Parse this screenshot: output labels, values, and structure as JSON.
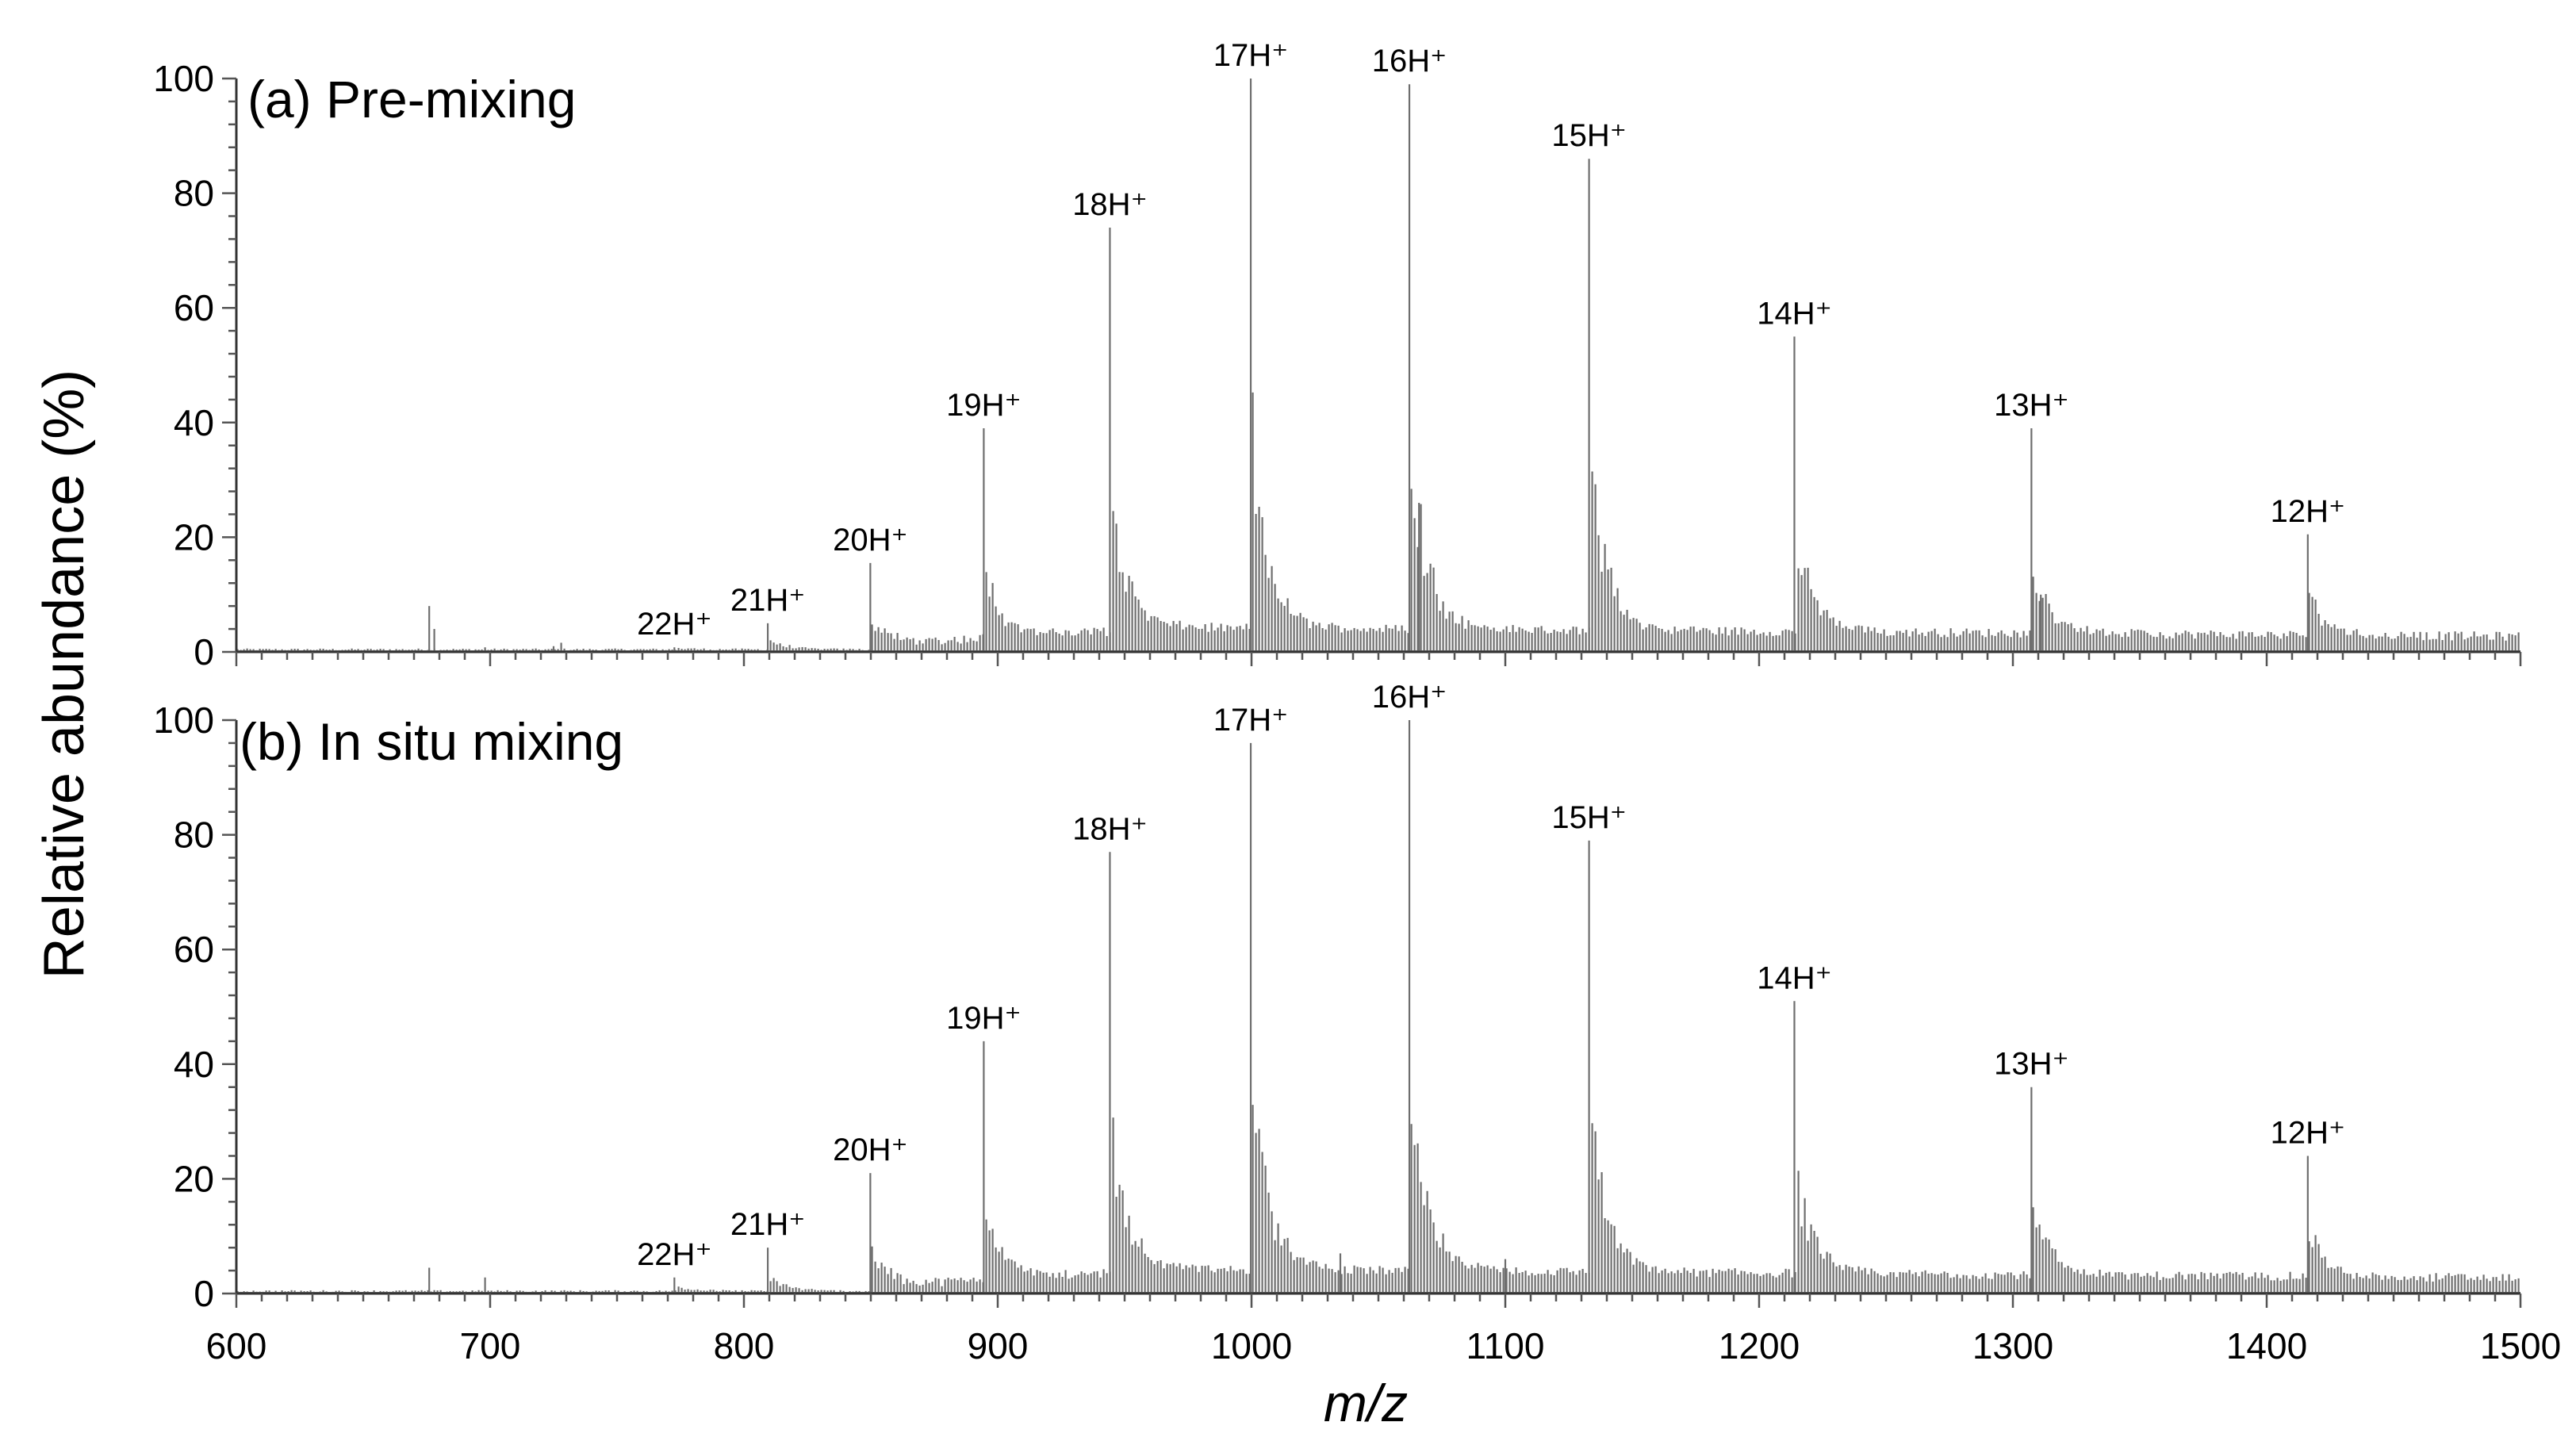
{
  "chart_data": {
    "type": "bar",
    "figure": {
      "xlabel": "m/z",
      "ylabel": "Relative abundance (%)",
      "xlim": [
        600,
        1500
      ],
      "xticks": [
        "600",
        "700",
        "800",
        "900",
        "1000",
        "1100",
        "1200",
        "1300",
        "1400",
        "1500"
      ]
    },
    "panels": [
      {
        "title": "(a) Pre-mixing",
        "ylim": [
          0,
          100
        ],
        "yticks": [
          "0",
          "20",
          "40",
          "60",
          "80",
          "100"
        ],
        "peaks": [
          {
            "label": "22H⁺",
            "mz": 772.6,
            "value": 0.8
          },
          {
            "label": "21H⁺",
            "mz": 809.4,
            "value": 5
          },
          {
            "label": "20H⁺",
            "mz": 849.8,
            "value": 15.5
          },
          {
            "label": "19H⁺",
            "mz": 894.5,
            "value": 39
          },
          {
            "label": "18H⁺",
            "mz": 944.2,
            "value": 74
          },
          {
            "label": "17H⁺",
            "mz": 999.7,
            "value": 100
          },
          {
            "label": "16H⁺",
            "mz": 1062.2,
            "value": 99
          },
          {
            "label": "15H⁺",
            "mz": 1133.0,
            "value": 86
          },
          {
            "label": "14H⁺",
            "mz": 1213.9,
            "value": 55
          },
          {
            "label": "13H⁺",
            "mz": 1307.3,
            "value": 39
          },
          {
            "label": "12H⁺",
            "mz": 1416.2,
            "value": 20.5
          }
        ],
        "minor_peaks": [
          {
            "mz": 676,
            "value": 8
          },
          {
            "mz": 678,
            "value": 4
          },
          {
            "mz": 698,
            "value": 0.8
          },
          {
            "mz": 725,
            "value": 1
          },
          {
            "mz": 728,
            "value": 1.6
          },
          {
            "mz": 1066,
            "value": 26
          },
          {
            "mz": 1311,
            "value": 10
          }
        ]
      },
      {
        "title": "(b) In situ mixing",
        "ylim": [
          0,
          100
        ],
        "yticks": [
          "0",
          "20",
          "40",
          "60",
          "80",
          "100"
        ],
        "peaks": [
          {
            "label": "22H⁺",
            "mz": 772.6,
            "value": 2.8
          },
          {
            "label": "21H⁺",
            "mz": 809.4,
            "value": 8
          },
          {
            "label": "20H⁺",
            "mz": 849.8,
            "value": 21
          },
          {
            "label": "19H⁺",
            "mz": 894.5,
            "value": 44
          },
          {
            "label": "18H⁺",
            "mz": 944.2,
            "value": 77
          },
          {
            "label": "17H⁺",
            "mz": 999.7,
            "value": 96
          },
          {
            "label": "16H⁺",
            "mz": 1062.2,
            "value": 100
          },
          {
            "label": "15H⁺",
            "mz": 1133.0,
            "value": 79
          },
          {
            "label": "14H⁺",
            "mz": 1213.9,
            "value": 51
          },
          {
            "label": "13H⁺",
            "mz": 1307.3,
            "value": 36
          },
          {
            "label": "12H⁺",
            "mz": 1416.2,
            "value": 24
          }
        ],
        "minor_peaks": [
          {
            "mz": 676,
            "value": 4.5
          },
          {
            "mz": 698,
            "value": 2.8
          },
          {
            "mz": 1035,
            "value": 7
          },
          {
            "mz": 1100,
            "value": 6
          }
        ]
      }
    ]
  }
}
